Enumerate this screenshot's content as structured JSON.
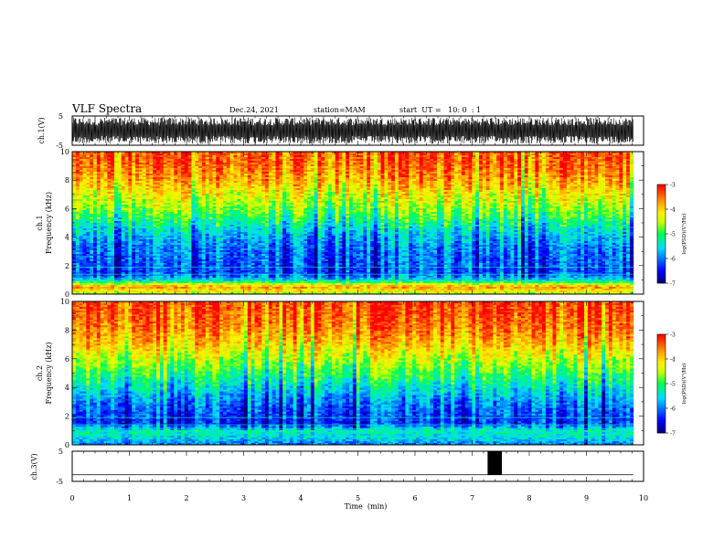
{
  "header": {
    "title": "VLF Spectra",
    "date": "Dec.24, 2021",
    "station": "station=MAM",
    "start_time": "start  UT =   10: 0  : 1"
  },
  "chart_data": [
    {
      "type": "line",
      "name": "ch1-waveform",
      "ylabel": "ch.1(V)",
      "yticks": [
        "5",
        "-5"
      ],
      "ylim": [
        -5,
        5
      ],
      "xlim": [
        0,
        10
      ],
      "x_end": 9.82,
      "description_amplitude": [
        -4.5,
        4.5
      ]
    },
    {
      "type": "heatmap",
      "name": "ch1-spectrogram",
      "ylabel": "ch.1\nFrequency (kHz)",
      "ylabel_lines": [
        "ch.1",
        "Frequency (kHz)"
      ],
      "yticks": [
        "0",
        "2",
        "4",
        "6",
        "8",
        "10"
      ],
      "ylim": [
        0,
        10
      ],
      "xlim": [
        0,
        10
      ],
      "x_end": 9.82,
      "colorbar": {
        "label": "log(PSD)(V²/Hz)",
        "ticks": [
          "-3",
          "-4",
          "-5",
          "-6",
          "-7"
        ],
        "range": [
          -7,
          -3
        ]
      },
      "psd_profile_by_freq_khz": [
        {
          "f": 0.2,
          "v": -4.2
        },
        {
          "f": 0.5,
          "v": -3.6
        },
        {
          "f": 1.0,
          "v": -5.6
        },
        {
          "f": 1.5,
          "v": -6.2
        },
        {
          "f": 2.0,
          "v": -6.1
        },
        {
          "f": 3.0,
          "v": -6.0
        },
        {
          "f": 4.0,
          "v": -5.7
        },
        {
          "f": 5.0,
          "v": -5.2
        },
        {
          "f": 6.0,
          "v": -4.6
        },
        {
          "f": 7.0,
          "v": -4.2
        },
        {
          "f": 8.0,
          "v": -3.7
        },
        {
          "f": 9.0,
          "v": -3.4
        },
        {
          "f": 10.0,
          "v": -3.3
        }
      ]
    },
    {
      "type": "heatmap",
      "name": "ch2-spectrogram",
      "ylabel": "ch.2\nFrequency (kHz)",
      "ylabel_lines": [
        "ch.2",
        "Frequency (kHz)"
      ],
      "yticks": [
        "0",
        "2",
        "4",
        "6",
        "8",
        "10"
      ],
      "ylim": [
        0,
        10
      ],
      "xlim": [
        0,
        10
      ],
      "x_end": 9.82,
      "colorbar": {
        "label": "log(PSD)(V²/Hz)",
        "ticks": [
          "-3",
          "-4",
          "-5",
          "-6",
          "-7"
        ],
        "range": [
          -7,
          -3
        ]
      },
      "psd_profile_by_freq_khz": [
        {
          "f": 0.2,
          "v": -5.8
        },
        {
          "f": 0.5,
          "v": -5.5
        },
        {
          "f": 1.0,
          "v": -5.3
        },
        {
          "f": 1.5,
          "v": -6.3
        },
        {
          "f": 2.0,
          "v": -6.2
        },
        {
          "f": 3.0,
          "v": -5.9
        },
        {
          "f": 4.0,
          "v": -5.4
        },
        {
          "f": 5.0,
          "v": -4.9
        },
        {
          "f": 6.0,
          "v": -4.4
        },
        {
          "f": 7.0,
          "v": -3.9
        },
        {
          "f": 8.0,
          "v": -3.5
        },
        {
          "f": 9.0,
          "v": -3.3
        },
        {
          "f": 10.0,
          "v": -3.2
        }
      ]
    },
    {
      "type": "line",
      "name": "ch3-waveform",
      "ylabel": "ch.3(V)",
      "yticks": [
        "5",
        "-5"
      ],
      "ylim": [
        -5,
        5
      ],
      "xlim": [
        0,
        10
      ],
      "baseline": -2.8,
      "pulse": {
        "x_start": 7.27,
        "x_end": 7.52,
        "y_top": 5,
        "y_bottom": -2.8
      }
    }
  ],
  "xaxis": {
    "label": "Time  (min)",
    "ticks": [
      "0",
      "1",
      "2",
      "3",
      "4",
      "5",
      "6",
      "7",
      "8",
      "9",
      "10"
    ]
  },
  "colors": {
    "waveform": "#000000",
    "colormap": [
      "#000080",
      "#0000ff",
      "#00ffff",
      "#00ff00",
      "#ffff00",
      "#ff8000",
      "#ff0000"
    ]
  }
}
